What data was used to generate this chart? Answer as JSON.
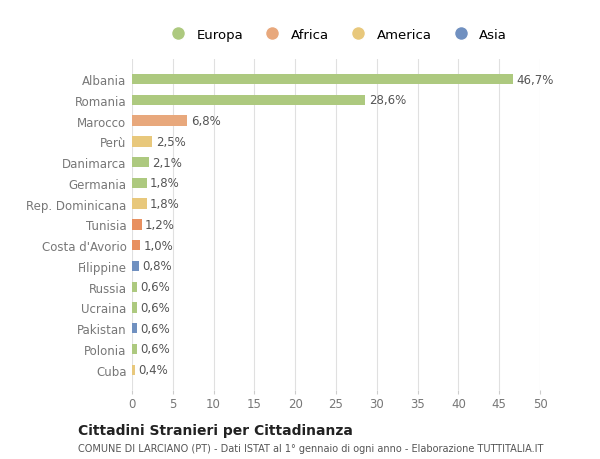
{
  "categories": [
    "Albania",
    "Romania",
    "Marocco",
    "Perù",
    "Danimarca",
    "Germania",
    "Rep. Dominicana",
    "Tunisia",
    "Costa d'Avorio",
    "Filippine",
    "Russia",
    "Ucraina",
    "Pakistan",
    "Polonia",
    "Cuba"
  ],
  "values": [
    46.7,
    28.6,
    6.8,
    2.5,
    2.1,
    1.8,
    1.8,
    1.2,
    1.0,
    0.8,
    0.6,
    0.6,
    0.6,
    0.6,
    0.4
  ],
  "labels": [
    "46,7%",
    "28,6%",
    "6,8%",
    "2,5%",
    "2,1%",
    "1,8%",
    "1,8%",
    "1,2%",
    "1,0%",
    "0,8%",
    "0,6%",
    "0,6%",
    "0,6%",
    "0,6%",
    "0,4%"
  ],
  "colors": [
    "#adc97f",
    "#adc97f",
    "#e8a87c",
    "#e8c87c",
    "#adc97f",
    "#adc97f",
    "#e8c87c",
    "#e89060",
    "#e89060",
    "#7090c0",
    "#adc97f",
    "#adc97f",
    "#7090c0",
    "#adc97f",
    "#e8c87c"
  ],
  "legend_labels": [
    "Europa",
    "Africa",
    "America",
    "Asia"
  ],
  "legend_colors": [
    "#adc97f",
    "#e8a87c",
    "#e8c87c",
    "#7090c0"
  ],
  "title1": "Cittadini Stranieri per Cittadinanza",
  "title2": "COMUNE DI LARCIANO (PT) - Dati ISTAT al 1° gennaio di ogni anno - Elaborazione TUTTITALIA.IT",
  "xlim": [
    0,
    50
  ],
  "xticks": [
    0,
    5,
    10,
    15,
    20,
    25,
    30,
    35,
    40,
    45,
    50
  ],
  "background_color": "#ffffff",
  "grid_color": "#e0e0e0",
  "bar_height": 0.5,
  "label_fontsize": 8.5,
  "tick_fontsize": 8.5,
  "label_color": "#555555",
  "tick_color": "#777777"
}
